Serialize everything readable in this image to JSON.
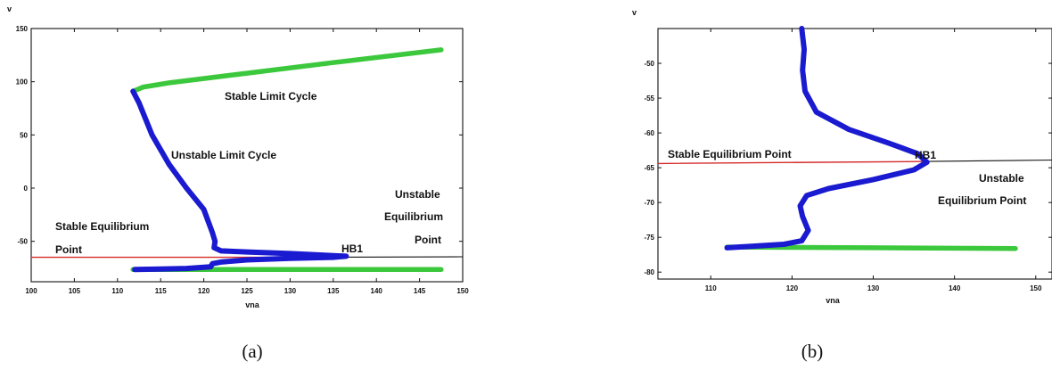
{
  "chart_data": [
    {
      "type": "line",
      "panel_label": "(a)",
      "xlabel": "vna",
      "ylabel": "v",
      "xlim": [
        100,
        150
      ],
      "ylim": [
        -88,
        150
      ],
      "xticks": [
        100,
        105,
        110,
        115,
        120,
        125,
        130,
        135,
        140,
        145,
        150
      ],
      "yticks": [
        -50,
        0,
        50,
        100,
        150
      ],
      "series": [
        {
          "role": "stable-equilibrium",
          "color": "#d42a2a",
          "x": [
            100,
            130
          ],
          "y": [
            -65,
            -65
          ]
        },
        {
          "role": "unstable-equilibrium",
          "color": "#111111",
          "x": [
            130,
            150
          ],
          "y": [
            -65,
            -64.5
          ]
        },
        {
          "role": "stable-limit-cycle",
          "color": "#3cc83c",
          "x": [
            111.8,
            113,
            116,
            125,
            135,
            147.5
          ],
          "y": [
            91,
            95,
            99,
            108,
            118,
            130
          ]
        },
        {
          "role": "stable-limit-cycle-lower",
          "color": "#3cc83c",
          "x": [
            111.8,
            120,
            130,
            147.5
          ],
          "y": [
            -76.5,
            -76.5,
            -76.5,
            -76.5
          ]
        },
        {
          "role": "unstable-limit-cycle",
          "color": "#1a1ad0",
          "x": [
            111.8,
            112.5,
            114,
            116,
            118,
            120,
            121,
            121.3,
            121.2,
            122,
            125,
            130,
            134,
            136.5,
            135,
            130,
            125,
            122,
            121,
            120.8,
            118,
            115,
            112
          ],
          "y": [
            91,
            80,
            50,
            22,
            0,
            -20,
            -42,
            -50,
            -56,
            -59,
            -60,
            -61.5,
            -63,
            -64,
            -65,
            -66,
            -67.5,
            -69.5,
            -71,
            -74,
            -75.5,
            -76,
            -76.5
          ]
        }
      ],
      "annotations": {
        "stable_limit_cycle": "Stable Limit Cycle",
        "unstable_limit_cycle": "Unstable Limit Cycle",
        "stable_equilibrium_1": "Stable Equilibrium",
        "stable_equilibrium_2": "Point",
        "unstable_1": "Unstable",
        "unstable_2": "Equilibrium",
        "unstable_3": "Point",
        "hb1": "HB1"
      }
    },
    {
      "type": "line",
      "panel_label": "(b)",
      "xlabel": "vna",
      "ylabel": "v",
      "xlim": [
        103.5,
        152
      ],
      "ylim": [
        -81,
        -45
      ],
      "xticks": [
        110,
        120,
        130,
        140,
        150
      ],
      "yticks": [
        -50,
        -55,
        -60,
        -65,
        -70,
        -75,
        -80
      ],
      "series": [
        {
          "role": "stable-equilibrium",
          "color": "#d42a2a",
          "x": [
            103.5,
            136.5
          ],
          "y": [
            -64.4,
            -64.1
          ]
        },
        {
          "role": "unstable-equilibrium",
          "color": "#111111",
          "x": [
            136.5,
            152
          ],
          "y": [
            -64.1,
            -63.9
          ]
        },
        {
          "role": "stable-limit-cycle-lower",
          "color": "#3cc83c",
          "x": [
            112,
            130,
            147.5
          ],
          "y": [
            -76.4,
            -76.5,
            -76.6
          ]
        },
        {
          "role": "unstable-limit-cycle",
          "color": "#1a1ad0",
          "x": [
            121.2,
            121.5,
            121.3,
            121.6,
            123,
            127,
            132,
            135.5,
            136.6,
            135,
            130,
            124.5,
            121.8,
            121,
            121.3,
            122,
            121.2,
            119,
            115,
            112
          ],
          "y": [
            -45,
            -48,
            -51,
            -54,
            -57,
            -59.5,
            -61.5,
            -63,
            -64.2,
            -65.3,
            -66.7,
            -68,
            -69,
            -70.5,
            -72,
            -74,
            -75.5,
            -76,
            -76.3,
            -76.5
          ]
        }
      ],
      "annotations": {
        "stable_equilibrium": "Stable Equilibrium Point",
        "hb1": "HB1",
        "unstable_1": "Unstable",
        "unstable_2": "Equilibrium Point"
      }
    }
  ]
}
